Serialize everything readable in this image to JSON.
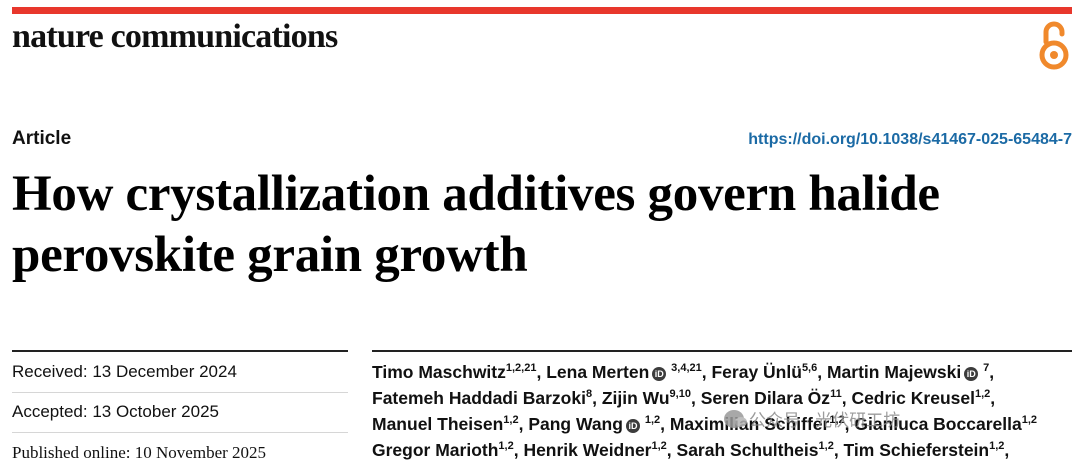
{
  "colors": {
    "brand_bar": "#e8372c",
    "doi_link": "#1b6aa5",
    "open_access": "#f0892c"
  },
  "journal": {
    "name": "nature communications",
    "open_access_icon": "open-access-icon"
  },
  "article": {
    "type": "Article",
    "doi": "https://doi.org/10.1038/s41467-025-65484-7",
    "title_line1": "How crystallization additives govern halide",
    "title_line2": "perovskite grain growth"
  },
  "dates": {
    "received": "Received: 13 December 2024",
    "accepted": "Accepted: 13 October 2025",
    "published": "Published online: 10 November 2025"
  },
  "authors": [
    [
      {
        "name": "Timo Maschwitz",
        "sup": "1,2,21",
        "orcid": false,
        "sep": ", "
      },
      {
        "name": "Lena Merten",
        "sup": "3,4,21",
        "orcid": true,
        "sep": ", "
      },
      {
        "name": "Feray Ünlü",
        "sup": "5,6",
        "orcid": false,
        "sep": ", "
      },
      {
        "name": "Martin Majewski",
        "sup": "7",
        "orcid": true,
        "sep": ","
      }
    ],
    [
      {
        "name": "Fatemeh Haddadi Barzoki",
        "sup": "8",
        "orcid": false,
        "sep": ", "
      },
      {
        "name": "Zijin Wu",
        "sup": "9,10",
        "orcid": false,
        "sep": ", "
      },
      {
        "name": "Seren Dilara Öz",
        "sup": "11",
        "orcid": false,
        "sep": ", "
      },
      {
        "name": "Cedric Kreusel",
        "sup": "1,2",
        "orcid": false,
        "sep": ","
      }
    ],
    [
      {
        "name": "Manuel Theisen",
        "sup": "1,2",
        "orcid": false,
        "sep": ", "
      },
      {
        "name": "Pang Wang",
        "sup": "1,2",
        "orcid": true,
        "sep": ", "
      },
      {
        "name": "",
        "sup": "",
        "orcid": false,
        "sep": ""
      }
    ],
    [
      {
        "name": "Gregor Marioth",
        "sup": "1,2",
        "orcid": false,
        "sep": ", "
      },
      {
        "name": "Henrik Weidner",
        "sup": "1,2",
        "orcid": false,
        "sep": ", "
      },
      {
        "name": "Sarah Schultheis",
        "sup": "1,2",
        "orcid": false,
        "sep": ", "
      },
      {
        "name": "Tim Schieferstein",
        "sup": "1,2",
        "orcid": false,
        "sep": ","
      }
    ]
  ],
  "authors_line3_tail": [
    {
      "name": "Maximilian Schiffer",
      "sup": "1,2",
      "sep": ", "
    },
    {
      "name": "Gianluca Boccarella",
      "sup": "1,2",
      "sep": ""
    }
  ],
  "watermark": {
    "text": "公众号 · 光伏研工坊"
  }
}
